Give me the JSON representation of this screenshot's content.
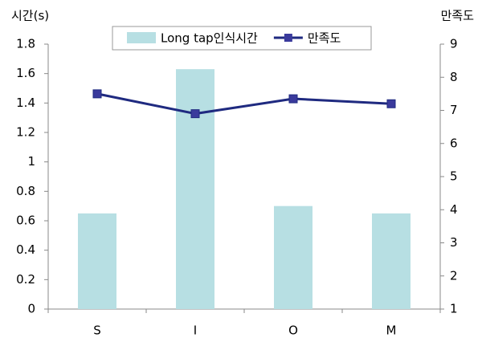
{
  "chart_data": {
    "type": "bar",
    "y_label": "시간(s)",
    "y2_label": "만족도",
    "categories": [
      "S",
      "I",
      "O",
      "M"
    ],
    "series": [
      {
        "name": "Long tap인식시간",
        "type": "bar",
        "color": "#b7dfe3",
        "values": [
          0.65,
          1.63,
          0.7,
          0.65
        ]
      },
      {
        "name": "만족도",
        "type": "line",
        "axis": "y2",
        "color": "#1f2a80",
        "values": [
          7.5,
          6.9,
          7.35,
          7.2
        ]
      }
    ],
    "ylim": [
      0,
      1.8
    ],
    "yticks": [
      0,
      0.2,
      0.4,
      0.6,
      0.8,
      1,
      1.2,
      1.4,
      1.6,
      1.8
    ],
    "y2lim": [
      1,
      9
    ],
    "y2ticks": [
      1,
      2,
      3,
      4,
      5,
      6,
      7,
      8,
      9
    ],
    "grid": false,
    "legend": "top"
  }
}
